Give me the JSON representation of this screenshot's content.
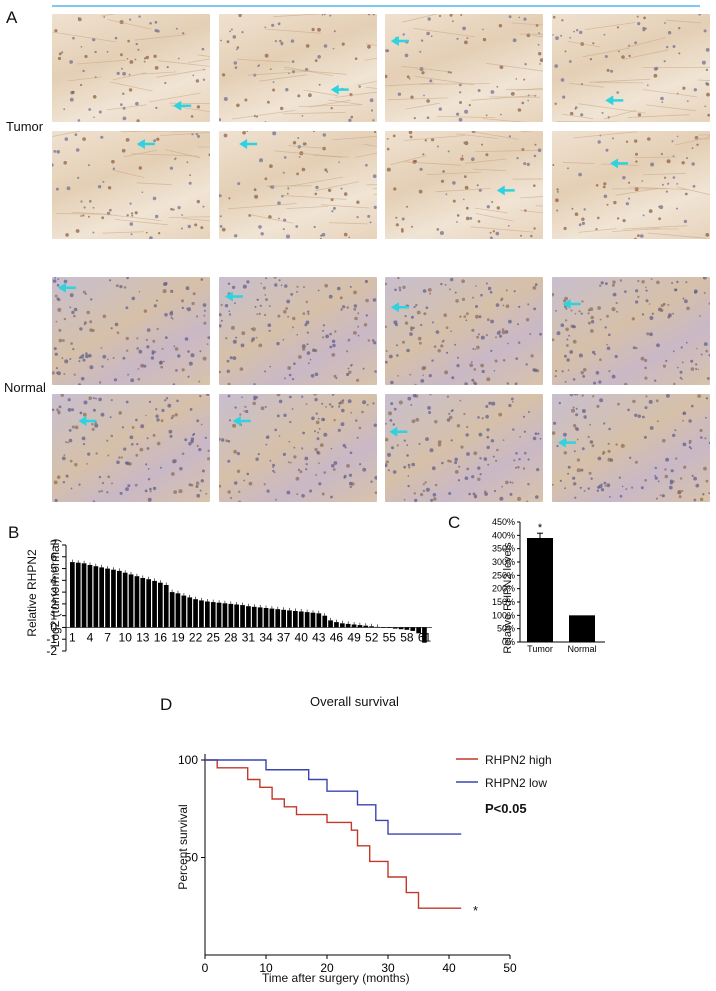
{
  "panel_a": {
    "letter": "A",
    "tumor_label": "Tumor",
    "normal_label": "Normal",
    "arrow_color": "#2fd3e0",
    "tumor_tiles": 8,
    "normal_tiles": 8
  },
  "panel_b": {
    "letter": "B",
    "ylabel_line1": "Relative RHPN2",
    "ylabel_line2": "Log2 (tumor/normal)"
  },
  "panel_c": {
    "letter": "C",
    "ylabel": "Relative RHPN2 levels"
  },
  "panel_d": {
    "letter": "D",
    "title": "Overall survival",
    "legend_high": "RHPN2 high",
    "legend_low": "RHPN2 low",
    "pvalue": "P<0.05",
    "xlabel": "Time after surgery (months)",
    "ylabel": "Percent survival",
    "star": "*"
  },
  "chart_data": [
    {
      "type": "bar",
      "ylabel": "Relative RHPN2 Log2 (tumor/normal)",
      "ylim": [
        -2,
        7
      ],
      "yticks": [
        -2,
        -1,
        0,
        1,
        2,
        3,
        4,
        5,
        6,
        7
      ],
      "xtick_labels": [
        "1",
        "4",
        "7",
        "10",
        "13",
        "16",
        "19",
        "22",
        "25",
        "28",
        "31",
        "34",
        "37",
        "40",
        "43",
        "46",
        "49",
        "52",
        "55",
        "58",
        "61"
      ],
      "values": [
        5.55,
        5.5,
        5.45,
        5.3,
        5.2,
        5.1,
        5.0,
        4.9,
        4.8,
        4.65,
        4.5,
        4.35,
        4.2,
        4.1,
        3.95,
        3.8,
        3.6,
        3.0,
        2.9,
        2.7,
        2.55,
        2.4,
        2.3,
        2.2,
        2.15,
        2.1,
        2.05,
        2.0,
        1.95,
        1.9,
        1.8,
        1.75,
        1.7,
        1.65,
        1.6,
        1.55,
        1.5,
        1.45,
        1.4,
        1.35,
        1.3,
        1.25,
        1.2,
        1.0,
        0.6,
        0.45,
        0.35,
        0.3,
        0.25,
        0.2,
        0.15,
        0.1,
        0.05,
        0.0,
        -0.05,
        -0.1,
        -0.15,
        -0.2,
        -0.3,
        -0.5,
        -1.3
      ]
    },
    {
      "type": "bar",
      "ylabel": "Relative RHPN2 levels",
      "categories": [
        "Tumor",
        "Normal"
      ],
      "values": [
        390,
        100
      ],
      "error": [
        18,
        0
      ],
      "significance": [
        "*",
        ""
      ],
      "ylim": [
        0,
        450
      ],
      "yticks": [
        "0%",
        "50%",
        "100%",
        "150%",
        "200%",
        "250%",
        "300%",
        "350%",
        "400%",
        "450%"
      ]
    },
    {
      "type": "line",
      "title": "Overall survival",
      "xlabel": "Time after surgery (months)",
      "ylabel": "Percent survival",
      "xlim": [
        0,
        50
      ],
      "ylim": [
        0,
        100
      ],
      "xticks": [
        0,
        10,
        20,
        30,
        40,
        50
      ],
      "yticks": [
        50,
        100
      ],
      "series": [
        {
          "name": "RHPN2 high",
          "color": "#c0392b",
          "steps": [
            [
              0,
              100
            ],
            [
              2,
              96
            ],
            [
              7,
              90
            ],
            [
              9,
              86
            ],
            [
              11,
              80
            ],
            [
              13,
              76
            ],
            [
              15,
              72
            ],
            [
              20,
              68
            ],
            [
              24,
              64
            ],
            [
              25,
              56
            ],
            [
              27,
              48
            ],
            [
              30,
              40
            ],
            [
              33,
              32
            ],
            [
              35,
              24
            ],
            [
              42,
              24
            ]
          ]
        },
        {
          "name": "RHPN2 low",
          "color": "#3a45b0",
          "steps": [
            [
              0,
              100
            ],
            [
              10,
              95
            ],
            [
              17,
              90
            ],
            [
              20,
              84
            ],
            [
              25,
              77
            ],
            [
              28,
              69
            ],
            [
              30,
              62
            ],
            [
              42,
              62
            ]
          ]
        }
      ]
    }
  ]
}
